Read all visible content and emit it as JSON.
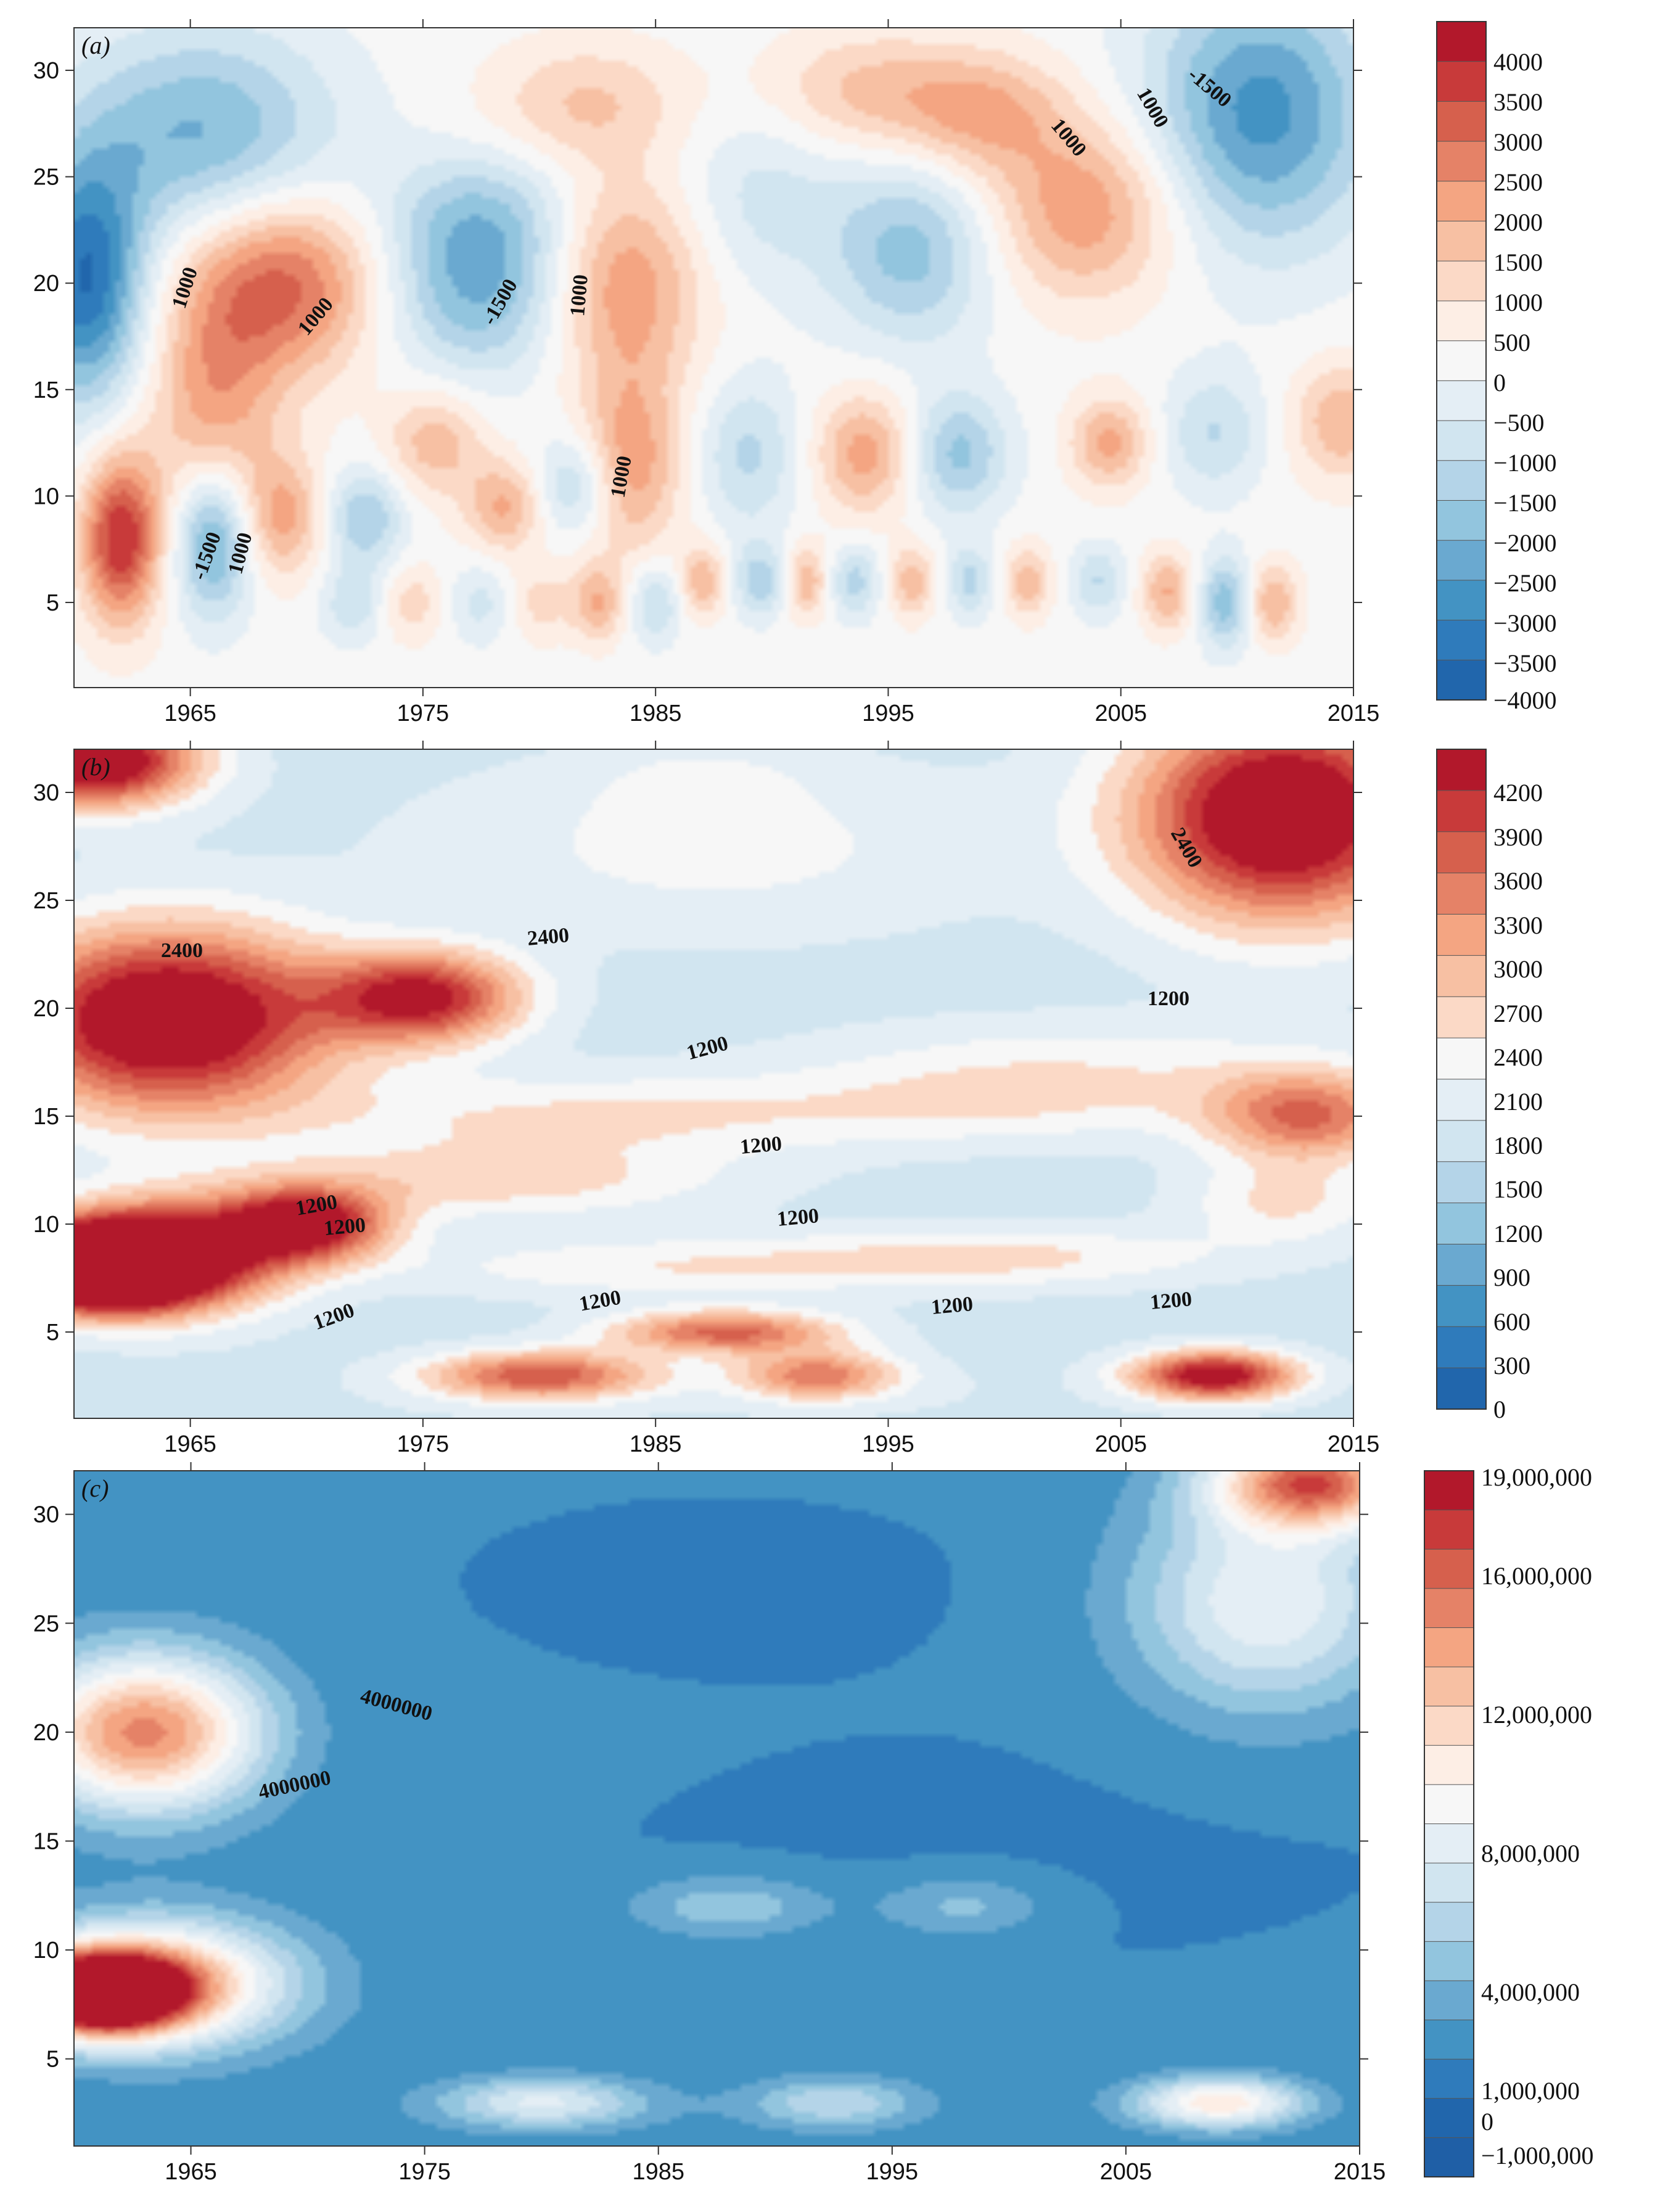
{
  "chart_data": [
    {
      "type": "heatmap",
      "panel_label": "(a)",
      "x_ticks": [
        1965,
        1975,
        1985,
        1995,
        2005,
        2015
      ],
      "y_ticks": [
        5,
        10,
        15,
        20,
        25,
        30
      ],
      "xlim": [
        1960,
        2015
      ],
      "ylim": [
        1,
        32
      ],
      "colorbar_ticks": [
        "4000",
        "3500",
        "3000",
        "2500",
        "2000",
        "1500",
        "1000",
        "500",
        "0",
        "−500",
        "−1000",
        "−1500",
        "−2000",
        "−2500",
        "−3000",
        "−3500",
        "−4000"
      ],
      "colorbar_colors": [
        "#b2182b",
        "#c83a3a",
        "#d6604d",
        "#e58267",
        "#f4a582",
        "#f7c0a3",
        "#fbd9c6",
        "#fdeee5",
        "#f7f7f7",
        "#e4eef5",
        "#d1e5f0",
        "#b4d4e8",
        "#92c5de",
        "#6aa9d0",
        "#4393c3",
        "#2f7bbb",
        "#2166ac"
      ],
      "contour_labels": [
        "1000",
        "1000",
        "-1500",
        "1000",
        "1000",
        "-1500",
        "1000",
        "1000",
        "1000",
        "-1500"
      ],
      "blobs": [
        {
          "x": 1962.0,
          "y": 8.0,
          "v": 3500,
          "rx": 1.2,
          "ry": 2.8
        },
        {
          "x": 1969.0,
          "y": 20.0,
          "v": 2800,
          "rx": 3.0,
          "ry": 3.0
        },
        {
          "x": 1966.0,
          "y": 14.0,
          "v": 1800,
          "rx": 2.0,
          "ry": 4.0
        },
        {
          "x": 1960.5,
          "y": 20.0,
          "v": -3500,
          "rx": 1.8,
          "ry": 4.0
        },
        {
          "x": 1965.5,
          "y": 27.0,
          "v": -2200,
          "rx": 4.0,
          "ry": 3.5
        },
        {
          "x": 1977.5,
          "y": 20.0,
          "v": -2300,
          "rx": 3.0,
          "ry": 3.0
        },
        {
          "x": 1966.0,
          "y": 8.0,
          "v": -2700,
          "rx": 1.2,
          "ry": 2.5
        },
        {
          "x": 1969.0,
          "y": 9.0,
          "v": 1700,
          "rx": 1.3,
          "ry": 2.0
        },
        {
          "x": 1972.5,
          "y": 9.0,
          "v": -1700,
          "rx": 1.2,
          "ry": 1.6
        },
        {
          "x": 1983.5,
          "y": 20.0,
          "v": 2200,
          "rx": 2.5,
          "ry": 3.5
        },
        {
          "x": 1984.0,
          "y": 11.5,
          "v": 1900,
          "rx": 1.5,
          "ry": 3.0
        },
        {
          "x": 1996.0,
          "y": 21.5,
          "v": -1900,
          "rx": 2.5,
          "ry": 3.0
        },
        {
          "x": 2003.5,
          "y": 23.5,
          "v": 2100,
          "rx": 3.0,
          "ry": 3.0
        },
        {
          "x": 2011.0,
          "y": 28.0,
          "v": -2800,
          "rx": 3.5,
          "ry": 4.5
        },
        {
          "x": 1975.5,
          "y": 12.5,
          "v": 1500,
          "rx": 1.5,
          "ry": 1.8
        },
        {
          "x": 1989.0,
          "y": 12.0,
          "v": -1300,
          "rx": 1.5,
          "ry": 2.5
        },
        {
          "x": 1994.0,
          "y": 12.0,
          "v": 1900,
          "rx": 1.5,
          "ry": 2.0
        },
        {
          "x": 1998.0,
          "y": 12.0,
          "v": -1800,
          "rx": 1.5,
          "ry": 2.0
        },
        {
          "x": 2004.5,
          "y": 12.5,
          "v": 1800,
          "rx": 1.2,
          "ry": 1.5
        },
        {
          "x": 2009.0,
          "y": 13.0,
          "v": -1200,
          "rx": 1.5,
          "ry": 2.0
        },
        {
          "x": 2014.5,
          "y": 13.5,
          "v": 1600,
          "rx": 1.5,
          "ry": 2.0
        },
        {
          "x": 1978.5,
          "y": 9.5,
          "v": 1700,
          "rx": 1.2,
          "ry": 1.5
        },
        {
          "x": 1981.5,
          "y": 10.5,
          "v": -1400,
          "rx": 1.2,
          "ry": 1.6
        },
        {
          "x": 1977.5,
          "y": 23.5,
          "v": -900,
          "rx": 3.0,
          "ry": 2.0
        },
        {
          "x": 1982.0,
          "y": 28.5,
          "v": 1200,
          "rx": 3.0,
          "ry": 2.0
        },
        {
          "x": 1994.0,
          "y": 29.0,
          "v": 1300,
          "rx": 3.0,
          "ry": 2.0
        },
        {
          "x": 1999.0,
          "y": 28.0,
          "v": 1600,
          "rx": 2.5,
          "ry": 2.0
        },
        {
          "x": 1989.5,
          "y": 24.0,
          "v": -900,
          "rx": 2.5,
          "ry": 3.0
        },
        {
          "x": 1982.5,
          "y": 5.0,
          "v": 1600,
          "rx": 0.8,
          "ry": 1.3
        },
        {
          "x": 1985.0,
          "y": 5.0,
          "v": -1300,
          "rx": 0.8,
          "ry": 1.3
        },
        {
          "x": 1987.0,
          "y": 6.0,
          "v": 1600,
          "rx": 0.7,
          "ry": 1.2
        },
        {
          "x": 1989.5,
          "y": 6.0,
          "v": -1500,
          "rx": 0.8,
          "ry": 1.2
        },
        {
          "x": 1991.5,
          "y": 6.0,
          "v": 1600,
          "rx": 0.7,
          "ry": 1.2
        },
        {
          "x": 1993.5,
          "y": 6.0,
          "v": -1400,
          "rx": 0.8,
          "ry": 1.2
        },
        {
          "x": 1996.0,
          "y": 6.0,
          "v": 1500,
          "rx": 0.7,
          "ry": 1.2
        },
        {
          "x": 1998.5,
          "y": 6.0,
          "v": -1300,
          "rx": 0.7,
          "ry": 1.2
        },
        {
          "x": 2001.0,
          "y": 6.0,
          "v": 1500,
          "rx": 0.7,
          "ry": 1.2
        },
        {
          "x": 2004.0,
          "y": 6.0,
          "v": -1200,
          "rx": 0.8,
          "ry": 1.2
        },
        {
          "x": 2007.0,
          "y": 5.5,
          "v": 1700,
          "rx": 0.8,
          "ry": 1.3
        },
        {
          "x": 2009.5,
          "y": 5.0,
          "v": -2000,
          "rx": 0.8,
          "ry": 1.5
        },
        {
          "x": 2011.5,
          "y": 5.0,
          "v": 1700,
          "rx": 0.8,
          "ry": 1.3
        },
        {
          "x": 1972.0,
          "y": 5.0,
          "v": -1100,
          "rx": 1.0,
          "ry": 1.3
        },
        {
          "x": 1974.5,
          "y": 5.0,
          "v": 1000,
          "rx": 1.0,
          "ry": 1.3
        },
        {
          "x": 1977.5,
          "y": 5.0,
          "v": -900,
          "rx": 1.0,
          "ry": 1.3
        },
        {
          "x": 1980.0,
          "y": 5.0,
          "v": 900,
          "rx": 1.0,
          "ry": 1.3
        }
      ]
    },
    {
      "type": "heatmap",
      "panel_label": "(b)",
      "x_ticks": [
        1965,
        1975,
        1985,
        1995,
        2005,
        2015
      ],
      "y_ticks": [
        5,
        10,
        15,
        20,
        25,
        30
      ],
      "xlim": [
        1960,
        2015
      ],
      "ylim": [
        1,
        32
      ],
      "colorbar_ticks": [
        "4200",
        "3900",
        "3600",
        "3300",
        "3000",
        "2700",
        "2400",
        "2100",
        "1800",
        "1500",
        "1200",
        "900",
        "600",
        "300",
        "0"
      ],
      "colorbar_colors": [
        "#b2182b",
        "#c83a3a",
        "#d6604d",
        "#e58267",
        "#f4a582",
        "#f7c0a3",
        "#fbd9c6",
        "#f7f7f7",
        "#e4eef5",
        "#d1e5f0",
        "#b4d4e8",
        "#92c5de",
        "#6aa9d0",
        "#4393c3",
        "#2f7bbb",
        "#2166ac"
      ],
      "contour_labels": [
        "2400",
        "2400",
        "1200",
        "1200",
        "1200",
        "1200",
        "1200",
        "1200",
        "1200",
        "2400",
        "1200",
        "1200",
        "1200"
      ],
      "blobs": [
        {
          "x": 1961.0,
          "y": 8.0,
          "v": 4200,
          "rx": 2.5,
          "ry": 1.3
        },
        {
          "x": 1964.0,
          "y": 8.5,
          "v": 2800,
          "rx": 3.5,
          "ry": 1.8
        },
        {
          "x": 1964.0,
          "y": 19.5,
          "v": 3000,
          "rx": 5.0,
          "ry": 3.0
        },
        {
          "x": 1961.0,
          "y": 31.5,
          "v": 2900,
          "rx": 3.0,
          "ry": 1.5
        },
        {
          "x": 2012.0,
          "y": 29.0,
          "v": 3000,
          "rx": 4.5,
          "ry": 3.5
        },
        {
          "x": 1987.5,
          "y": 27.5,
          "v": 500,
          "rx": 9.0,
          "ry": 3.0
        },
        {
          "x": 1987.0,
          "y": 30.5,
          "v": 300,
          "rx": 3.0,
          "ry": 1.2
        },
        {
          "x": 1982.0,
          "y": 15.0,
          "v": 700,
          "rx": 9.0,
          "ry": 1.4
        },
        {
          "x": 2000.0,
          "y": 15.5,
          "v": 500,
          "rx": 7.0,
          "ry": 1.3
        },
        {
          "x": 2003.0,
          "y": 17.5,
          "v": 500,
          "rx": 8.0,
          "ry": 1.5
        },
        {
          "x": 1978.0,
          "y": 12.0,
          "v": 800,
          "rx": 7.0,
          "ry": 1.2
        },
        {
          "x": 1985.0,
          "y": 8.0,
          "v": 600,
          "rx": 8.0,
          "ry": 1.0
        },
        {
          "x": 2000.0,
          "y": 8.5,
          "v": 700,
          "rx": 7.0,
          "ry": 1.0
        },
        {
          "x": 2012.0,
          "y": 11.0,
          "v": 700,
          "rx": 3.0,
          "ry": 1.3
        },
        {
          "x": 1985.0,
          "y": 1.8,
          "v": 100,
          "rx": 14.0,
          "ry": 1.2
        },
        {
          "x": 1999.5,
          "y": 2.0,
          "v": 50,
          "rx": 2.5,
          "ry": 2.5
        },
        {
          "x": 2009.0,
          "y": 3.0,
          "v": 2600,
          "rx": 2.5,
          "ry": 0.8
        },
        {
          "x": 1980.0,
          "y": 3.0,
          "v": 1900,
          "rx": 3.5,
          "ry": 0.8
        },
        {
          "x": 1992.0,
          "y": 3.0,
          "v": 1600,
          "rx": 2.5,
          "ry": 0.8
        },
        {
          "x": 1988.0,
          "y": 5.0,
          "v": 1800,
          "rx": 3.5,
          "ry": 0.7
        },
        {
          "x": 1975.0,
          "y": 20.5,
          "v": 2300,
          "rx": 3.0,
          "ry": 1.5
        },
        {
          "x": 1970.0,
          "y": 10.0,
          "v": 2500,
          "rx": 2.5,
          "ry": 1.2
        },
        {
          "x": 2013.0,
          "y": 15.0,
          "v": 1700,
          "rx": 3.0,
          "ry": 1.5
        }
      ]
    },
    {
      "type": "heatmap",
      "panel_label": "(c)",
      "x_ticks": [
        1965,
        1975,
        1985,
        1995,
        2005,
        2015
      ],
      "y_ticks": [
        5,
        10,
        15,
        20,
        25,
        30
      ],
      "xlim": [
        1960,
        2015
      ],
      "ylim": [
        1,
        32
      ],
      "colorbar_ticks": [
        "19,000,000",
        "16,000,000",
        "12,000,000",
        "8,000,000",
        "4,000,000",
        "1,000,000",
        "0",
        "−1,000,000"
      ],
      "colorbar_colors": [
        "#b2182b",
        "#c83a3a",
        "#d6604d",
        "#e58267",
        "#f4a582",
        "#f7c0a3",
        "#fbd9c6",
        "#fdeee5",
        "#f7f7f7",
        "#e4eef5",
        "#d1e5f0",
        "#b4d4e8",
        "#92c5de",
        "#6aa9d0",
        "#4393c3",
        "#2f7bbb",
        "#2166ac",
        "#1f5fa6"
      ],
      "contour_labels": [
        "4000000",
        "4000000"
      ],
      "blobs": [
        {
          "x": 1961.0,
          "y": 8.0,
          "v": 19000000,
          "rx": 2.5,
          "ry": 1.3
        },
        {
          "x": 1963.5,
          "y": 8.5,
          "v": 11000000,
          "rx": 4.0,
          "ry": 2.0
        },
        {
          "x": 1963.0,
          "y": 20.0,
          "v": 12500000,
          "rx": 3.5,
          "ry": 2.5
        },
        {
          "x": 2013.0,
          "y": 31.5,
          "v": 13000000,
          "rx": 3.0,
          "ry": 1.5
        },
        {
          "x": 1987.5,
          "y": 27.0,
          "v": -300000,
          "rx": 10.0,
          "ry": 3.5
        },
        {
          "x": 2000.0,
          "y": 14.5,
          "v": -300000,
          "rx": 15.0,
          "ry": 4.5
        },
        {
          "x": 1985.0,
          "y": 10.0,
          "v": 0,
          "rx": 20.0,
          "ry": 2.0
        },
        {
          "x": 1987.0,
          "y": 6.5,
          "v": 100000,
          "rx": 20.0,
          "ry": 1.0
        },
        {
          "x": 1985.0,
          "y": 2.5,
          "v": 300000,
          "rx": 16.0,
          "ry": 1.2
        },
        {
          "x": 2009.0,
          "y": 3.0,
          "v": 8500000,
          "rx": 2.5,
          "ry": 0.8
        },
        {
          "x": 1980.0,
          "y": 3.0,
          "v": 5500000,
          "rx": 3.0,
          "ry": 0.8
        },
        {
          "x": 1992.5,
          "y": 3.0,
          "v": 4000000,
          "rx": 2.5,
          "ry": 0.8
        },
        {
          "x": 1988.0,
          "y": 12.0,
          "v": 3000000,
          "rx": 3.0,
          "ry": 1.0
        },
        {
          "x": 1998.0,
          "y": 12.0,
          "v": 2500000,
          "rx": 2.5,
          "ry": 1.0
        },
        {
          "x": 2011.0,
          "y": 26.0,
          "v": 6500000,
          "rx": 4.0,
          "ry": 3.5
        }
      ]
    }
  ]
}
